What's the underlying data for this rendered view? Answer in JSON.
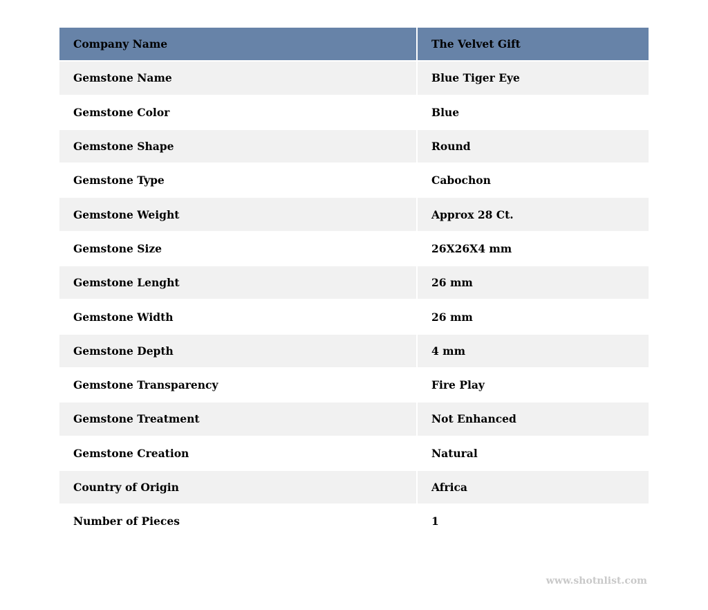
{
  "header": {
    "label": "Company Name",
    "value": "The Velvet Gift"
  },
  "rows": [
    {
      "label": "Gemstone Name",
      "value": "Blue Tiger Eye"
    },
    {
      "label": "Gemstone Color",
      "value": "Blue"
    },
    {
      "label": "Gemstone Shape",
      "value": "Round"
    },
    {
      "label": "Gemstone Type",
      "value": "Cabochon"
    },
    {
      "label": "Gemstone Weight",
      "value": "Approx 28 Ct."
    },
    {
      "label": "Gemstone Size",
      "value": "26X26X4 mm"
    },
    {
      "label": "Gemstone Lenght",
      "value": "26 mm"
    },
    {
      "label": "Gemstone Width",
      "value": "26 mm"
    },
    {
      "label": "Gemstone Depth",
      "value": "4 mm"
    },
    {
      "label": "Gemstone Transparency",
      "value": "Fire Play"
    },
    {
      "label": "Gemstone Treatment",
      "value": "Not Enhanced"
    },
    {
      "label": "Gemstone Creation",
      "value": "Natural"
    },
    {
      "label": "Country of Origin",
      "value": "Africa"
    },
    {
      "label": "Number of Pieces",
      "value": "1"
    }
  ],
  "watermark": "www.shotnlist.com",
  "colors": {
    "header_bg": "#6783a8",
    "stripe_bg": "#f1f1f1"
  }
}
